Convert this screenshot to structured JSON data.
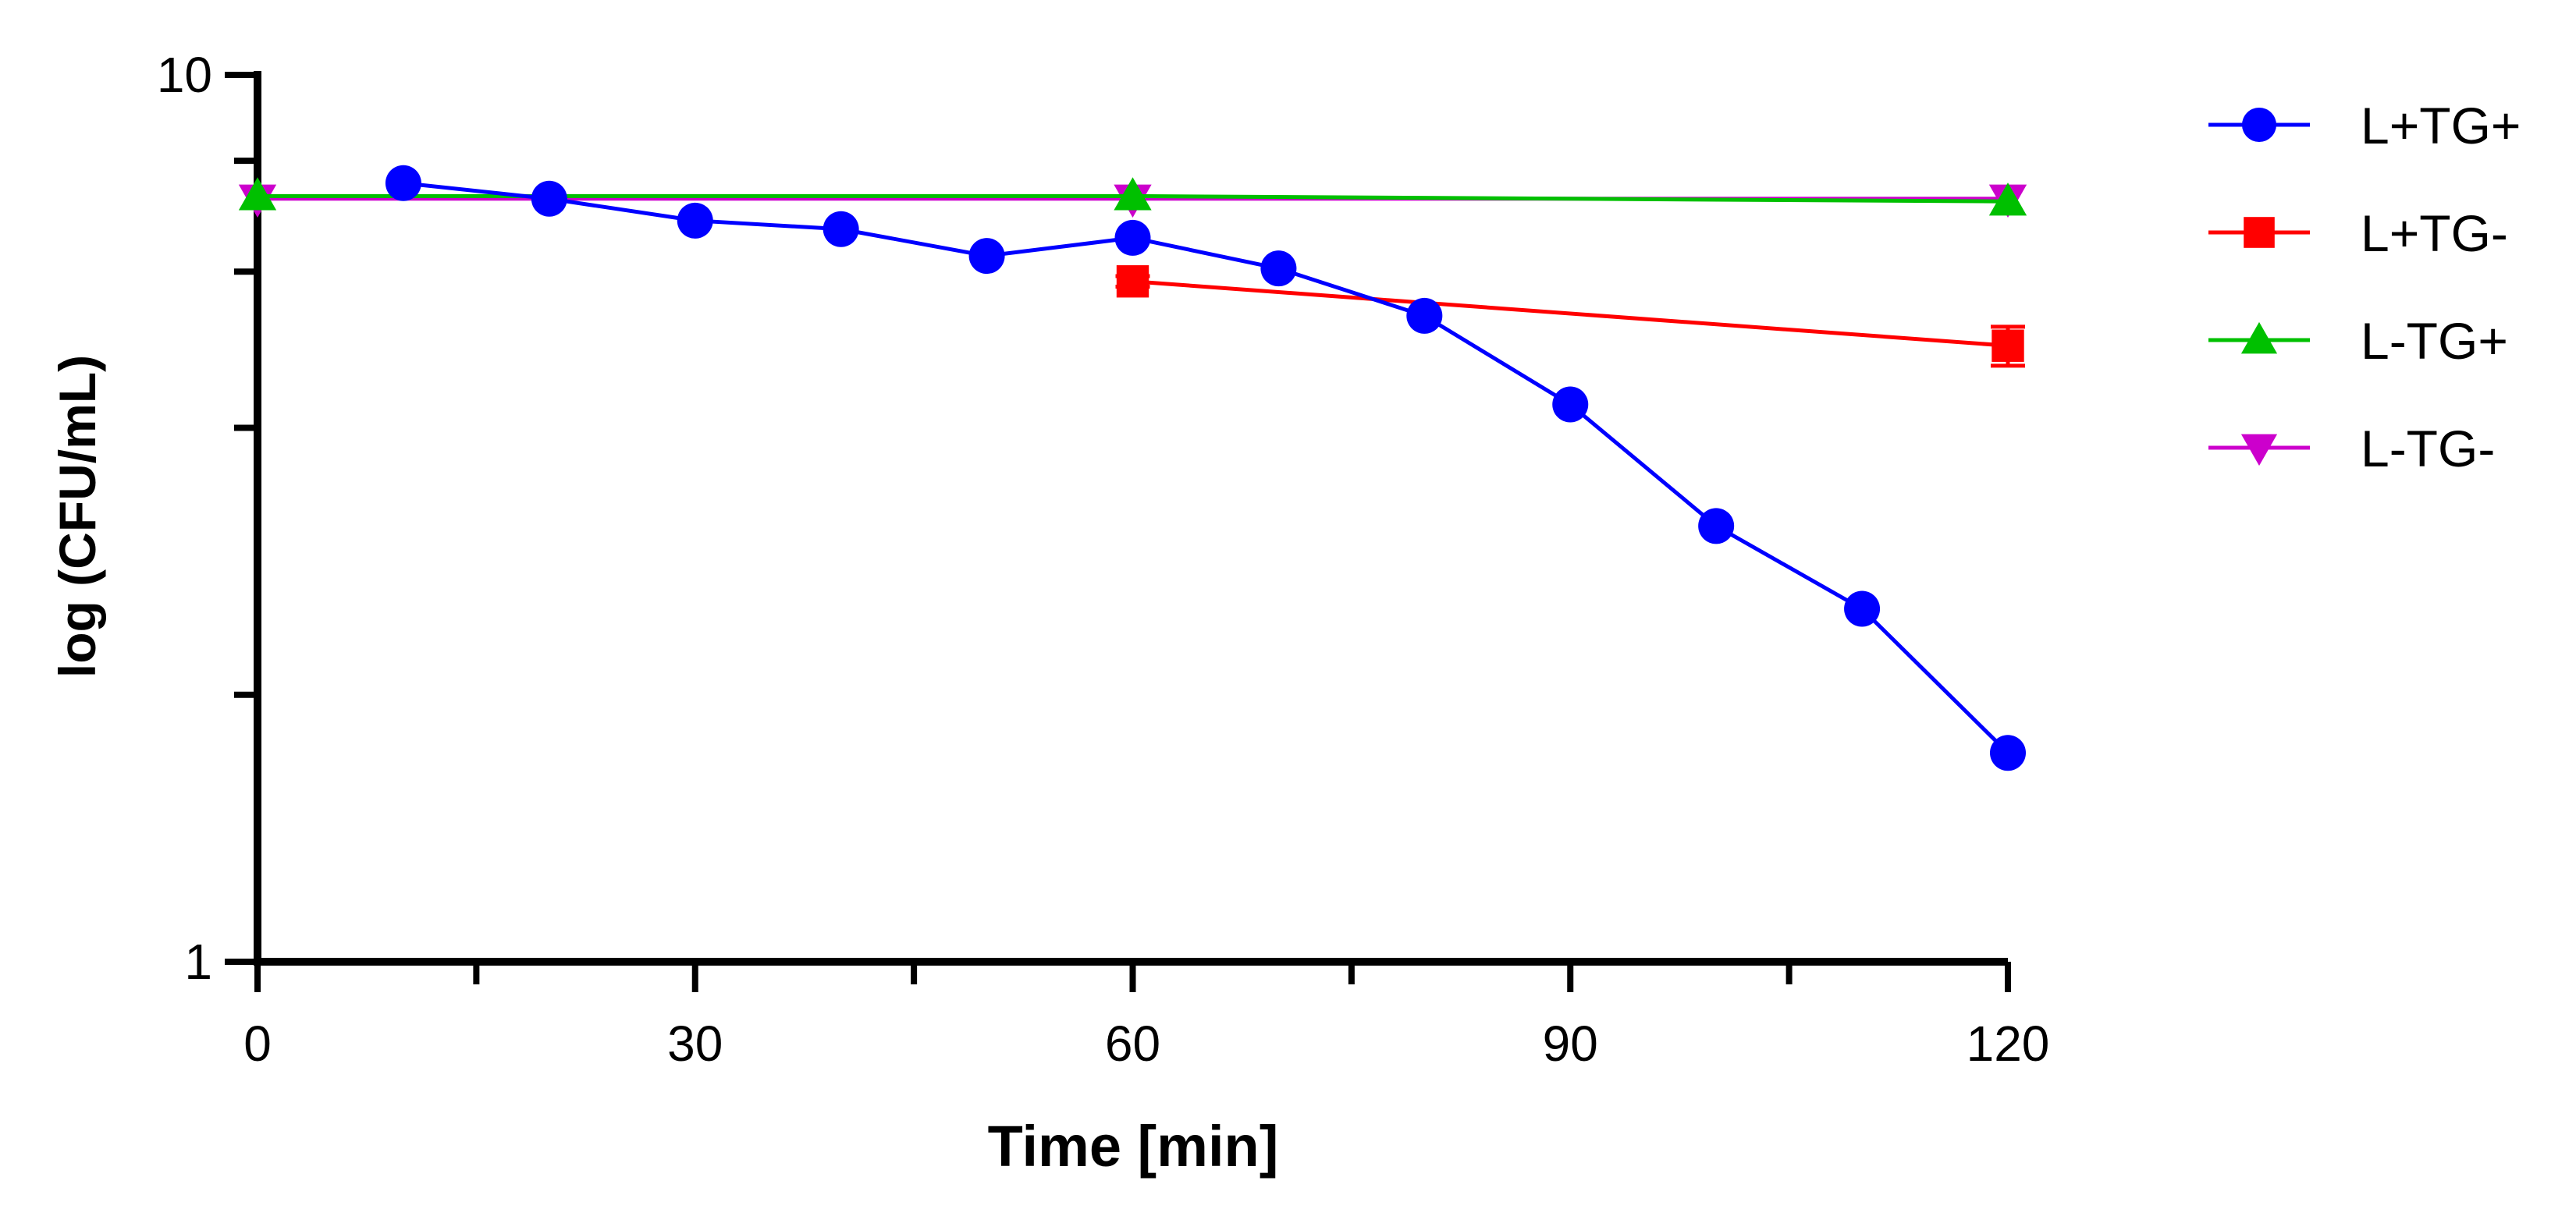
{
  "chart_data": {
    "type": "line",
    "title": "",
    "xlabel": "Time [min]",
    "ylabel": "log (CFU/mL)",
    "xlim": [
      0,
      120
    ],
    "ylim": [
      1,
      10
    ],
    "yscale": "log",
    "xticks": [
      0,
      30,
      60,
      90,
      120
    ],
    "xtick_labels": [
      "0",
      "30",
      "60",
      "90",
      "120"
    ],
    "xminor_ticks": [
      15,
      45,
      75,
      105
    ],
    "yticks": [
      1,
      10
    ],
    "ytick_labels": [
      "1",
      "10"
    ],
    "yminor_ticks": [
      2,
      4,
      6,
      8
    ],
    "grid": false,
    "legend_position": "right",
    "series": [
      {
        "name": "L+TG+",
        "color": "#0000ff",
        "marker": "circle",
        "x": [
          10,
          20,
          30,
          40,
          50,
          60,
          70,
          80,
          90,
          100,
          110,
          120
        ],
        "y": [
          7.55,
          7.25,
          6.85,
          6.7,
          6.25,
          6.55,
          6.05,
          5.35,
          4.25,
          3.1,
          2.5,
          1.72
        ],
        "error": [
          0,
          0,
          0,
          0,
          0,
          0,
          0,
          0,
          0,
          0,
          0,
          0
        ]
      },
      {
        "name": "L+TG-",
        "color": "#ff0000",
        "marker": "square",
        "x": [
          60,
          120
        ],
        "y": [
          5.85,
          4.95
        ],
        "error": [
          0.08,
          0.25
        ]
      },
      {
        "name": "L-TG+",
        "color": "#00c000",
        "marker": "triangle-up",
        "x": [
          0,
          60,
          120
        ],
        "y": [
          7.3,
          7.3,
          7.2
        ],
        "error": [
          0,
          0,
          0
        ]
      },
      {
        "name": "L-TG-",
        "color": "#cc00cc",
        "marker": "triangle-down",
        "x": [
          0,
          60,
          120
        ],
        "y": [
          7.25,
          7.25,
          7.25
        ],
        "error": [
          0,
          0,
          0
        ]
      }
    ]
  }
}
